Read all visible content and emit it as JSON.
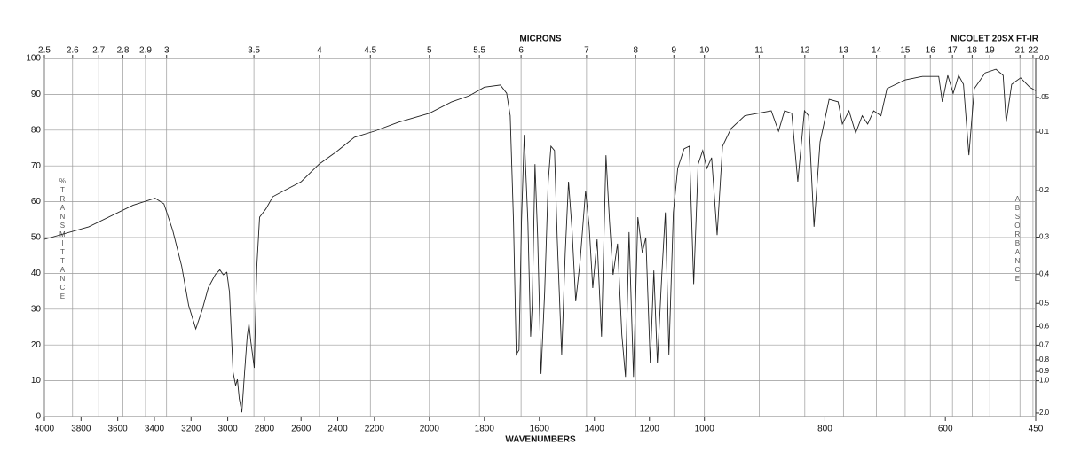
{
  "chart_data": {
    "type": "line",
    "title": "NICOLET 20SX FT-IR",
    "xlabel": "WAVENUMBERS",
    "x2label": "MICRONS",
    "ylabel": "%TRANSMITTANCE",
    "y2label": "ABSORBANCE",
    "xlim": [
      4000,
      450
    ],
    "xscale_breaks": [
      2200,
      1000
    ],
    "xticks": [
      4000,
      3800,
      3600,
      3400,
      3200,
      3000,
      2800,
      2600,
      2400,
      2200,
      2000,
      1800,
      1600,
      1400,
      1200,
      1000,
      800,
      600,
      450
    ],
    "x2ticks": [
      2.5,
      2.6,
      2.7,
      2.8,
      2.9,
      3,
      3.5,
      4,
      4.5,
      5,
      5.5,
      6,
      7,
      8,
      9,
      10,
      11,
      12,
      13,
      14,
      15,
      16,
      17,
      18,
      19,
      21,
      22
    ],
    "ylim": [
      0,
      100
    ],
    "yticks": [
      0,
      10,
      20,
      30,
      40,
      50,
      60,
      70,
      80,
      90,
      100
    ],
    "y2scale": "absorbance",
    "y2ticks": [
      {
        "value": 0,
        "label": "0.0"
      },
      {
        "value": 0.05,
        "label": ".05"
      },
      0.1,
      0.2,
      0.3,
      0.4,
      0.5,
      0.6,
      0.7,
      0.8,
      0.9,
      {
        "value": 1,
        "label": "1.0"
      },
      {
        "value": 2,
        "label": "2.0"
      }
    ],
    "grid": true,
    "color": "#222222",
    "x": [
      4000,
      3758,
      3517,
      3396,
      3348,
      3300,
      3251,
      3213,
      3174,
      3140,
      3106,
      3068,
      3043,
      3024,
      3005,
      2990,
      2971,
      2957,
      2947,
      2937,
      2923,
      2908,
      2894,
      2884,
      2874,
      2855,
      2841,
      2826,
      2792,
      2754,
      2696,
      2599,
      2502,
      2406,
      2309,
      2200,
      2113,
      2000,
      1919,
      1855,
      1800,
      1742,
      1719,
      1706,
      1694,
      1684,
      1674,
      1665,
      1655,
      1642,
      1632,
      1626,
      1616,
      1606,
      1594,
      1581,
      1568,
      1558,
      1545,
      1535,
      1519,
      1506,
      1494,
      1481,
      1468,
      1452,
      1432,
      1419,
      1406,
      1390,
      1374,
      1358,
      1345,
      1332,
      1316,
      1300,
      1287,
      1274,
      1258,
      1242,
      1226,
      1213,
      1197,
      1184,
      1171,
      1155,
      1142,
      1129,
      1113,
      1097,
      1074,
      1055,
      1039,
      1023,
      1006,
      996,
      988,
      979,
      970,
      956,
      933,
      889,
      877,
      867,
      855,
      845,
      834,
      827,
      818,
      808,
      793,
      778,
      771,
      760,
      749,
      738,
      729,
      719,
      707,
      697,
      667,
      638,
      611,
      605,
      596,
      587,
      578,
      570,
      561,
      552,
      534,
      516,
      504,
      499,
      490,
      475,
      460,
      450
    ],
    "values": [
      49.5,
      53,
      59,
      61,
      59.4,
      52,
      42,
      31,
      24.5,
      29.7,
      36,
      39.6,
      41,
      39.6,
      40.3,
      34.7,
      12.4,
      8.7,
      10.4,
      5,
      1.2,
      12.4,
      22.3,
      26,
      21,
      13.6,
      42,
      55.7,
      58,
      61.4,
      63,
      65.6,
      70.5,
      74,
      78,
      79.7,
      82.2,
      84.7,
      87.9,
      89.6,
      92,
      92.6,
      90.3,
      84,
      54.5,
      17.3,
      18.6,
      54.5,
      78.7,
      54.5,
      22.3,
      31,
      70.5,
      49.5,
      11.9,
      34.7,
      65.6,
      75.5,
      74.3,
      49.5,
      17.3,
      45.8,
      65.6,
      52,
      32.2,
      43.3,
      63,
      53,
      35.9,
      49.5,
      22.3,
      73,
      54.5,
      39.6,
      48.3,
      22.8,
      11.1,
      51.5,
      11.1,
      55.7,
      45.8,
      50,
      14.9,
      40.8,
      14.9,
      39.6,
      57,
      17.3,
      57,
      69.3,
      74.8,
      75.5,
      37,
      70.5,
      74.3,
      69.3,
      72.3,
      50.7,
      75.5,
      80.4,
      84,
      85.4,
      79.7,
      85.4,
      84.7,
      65.6,
      85.4,
      84,
      53,
      76.7,
      88.6,
      87.9,
      81.7,
      85.4,
      79.2,
      84,
      81.7,
      85.4,
      84,
      91.6,
      94,
      95,
      95,
      87.9,
      95.3,
      90.3,
      95.3,
      92.8,
      73,
      91.6,
      96,
      97,
      95.3,
      82.2,
      92.8,
      94.6,
      92,
      91
    ]
  }
}
